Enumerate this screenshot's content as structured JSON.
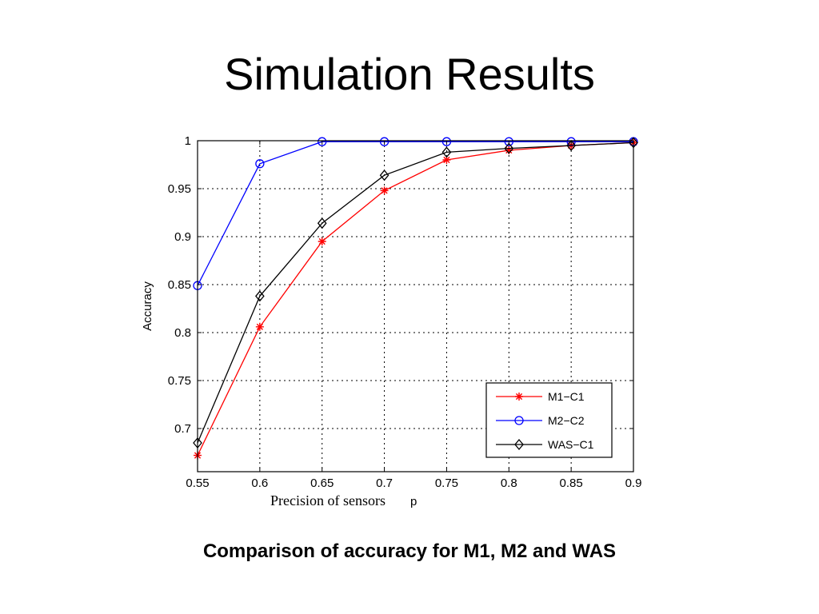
{
  "slide": {
    "title": "Simulation Results",
    "caption": "Comparison of accuracy for M1, M2 and WAS"
  },
  "chart_data": {
    "type": "line",
    "x": [
      0.55,
      0.6,
      0.65,
      0.7,
      0.75,
      0.8,
      0.85,
      0.9
    ],
    "x_tick_labels": [
      "0.55",
      "0.6",
      "0.65",
      "0.7",
      "0.75",
      "0.8",
      "0.85",
      "0.9"
    ],
    "y_tick_values": [
      0.7,
      0.75,
      0.8,
      0.85,
      0.9,
      0.95,
      1
    ],
    "y_tick_labels": [
      "0.7",
      "0.75",
      "0.8",
      "0.85",
      "0.9",
      "0.95",
      "1"
    ],
    "xlim": [
      0.55,
      0.9
    ],
    "ylim": [
      0.655,
      1.0
    ],
    "xlabel": "Precision of sensors",
    "xlabel_unit": "p",
    "ylabel": "Accuracy",
    "grid": true,
    "legend_position": "bottom-right",
    "series": [
      {
        "name": "M1−C1",
        "color": "#ff0000",
        "marker": "asterisk",
        "values": [
          0.672,
          0.806,
          0.895,
          0.948,
          0.98,
          0.99,
          0.995,
          0.998
        ]
      },
      {
        "name": "M2−C2",
        "color": "#0000ff",
        "marker": "circle",
        "values": [
          0.849,
          0.976,
          0.999,
          0.999,
          0.999,
          0.999,
          0.999,
          0.999
        ]
      },
      {
        "name": "WAS−C1",
        "color": "#000000",
        "marker": "diamond",
        "values": [
          0.685,
          0.838,
          0.914,
          0.964,
          0.988,
          0.992,
          0.995,
          0.998
        ]
      }
    ]
  }
}
